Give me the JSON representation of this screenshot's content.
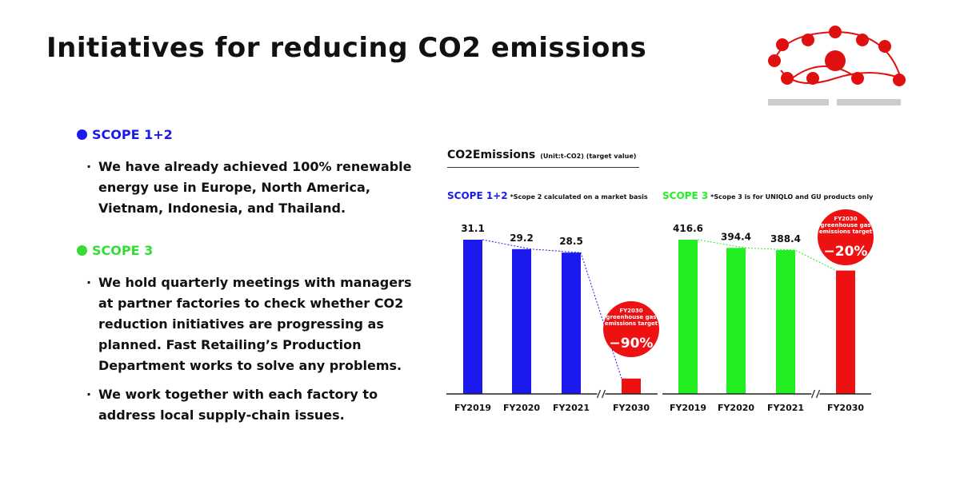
{
  "title": "Initiatives for reducing CO2 emissions",
  "scope12": {
    "heading": "SCOPE 1+2",
    "color": "#1a1aee",
    "bullets": [
      "We have already achieved 100% renewable energy use in Europe, North America, Vietnam, Indonesia, and Thailand."
    ]
  },
  "scope3": {
    "heading": "SCOPE 3",
    "color": "#33dd33",
    "bullets": [
      "We hold quarterly meetings with managers at partner factories to check whether CO2 reduction initiatives are progressing as planned. Fast Retailing’s Production Department works to solve any problems.",
      "We work together with each factory to address local supply-chain issues."
    ]
  },
  "charts_title": "CO2Emissions",
  "charts_unit": "(Unit:t-CO2) (target value)",
  "colors": {
    "accent": "#ee1111",
    "scope12": "#1a1aee",
    "scope3": "#22ee22"
  },
  "chart_data": [
    {
      "type": "bar",
      "title": "SCOPE 1+2",
      "note": "*Scope 2 calculated on a market basis",
      "categories": [
        "FY2019",
        "FY2020",
        "FY2021",
        "FY2030"
      ],
      "values": [
        31.1,
        29.2,
        28.5,
        3.1
      ],
      "labels": [
        "31.1",
        "29.2",
        "28.5",
        ""
      ],
      "bar_colors": [
        "#1a1aee",
        "#1a1aee",
        "#1a1aee",
        "#ee1111"
      ],
      "ylim": [
        0,
        31.1
      ],
      "axis_break_before": "FY2030",
      "trend_line": true,
      "target_badge": {
        "lines": [
          "FY2030",
          "greenhouse gas",
          "emissions target"
        ],
        "value": "−90%"
      }
    },
    {
      "type": "bar",
      "title": "SCOPE 3",
      "note": "*Scope 3 is for UNIQLO and GU products only",
      "categories": [
        "FY2019",
        "FY2020",
        "FY2021",
        "FY2030"
      ],
      "values": [
        416.6,
        394.4,
        388.4,
        333.3
      ],
      "labels": [
        "416.6",
        "394.4",
        "388.4",
        ""
      ],
      "bar_colors": [
        "#22ee22",
        "#22ee22",
        "#22ee22",
        "#ee1111"
      ],
      "ylim": [
        0,
        416.6
      ],
      "axis_break_before": "FY2030",
      "trend_line": true,
      "target_badge": {
        "lines": [
          "FY2030",
          "greenhouse gas",
          "emissions target"
        ],
        "value": "−20%"
      }
    }
  ]
}
